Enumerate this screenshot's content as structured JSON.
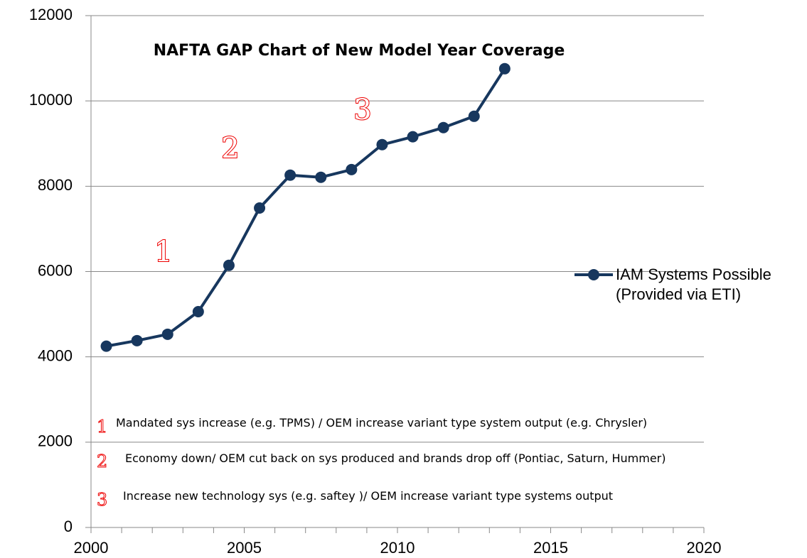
{
  "chart_data": {
    "type": "line",
    "title": "NAFTA GAP Chart of New Model Year  Coverage",
    "x": [
      2000.5,
      2001.5,
      2002.5,
      2003.5,
      2004.5,
      2005.5,
      2006.5,
      2007.5,
      2008.5,
      2009.5,
      2010.5,
      2011.5,
      2012.5,
      2013.5
    ],
    "series": [
      {
        "name": "IAM Systems Possible (Provided via ETI)",
        "color": "#17375e",
        "values": [
          4250,
          4380,
          4530,
          5060,
          6145,
          7490,
          8260,
          8210,
          8390,
          8975,
          9160,
          9375,
          9640,
          10755
        ]
      }
    ],
    "xlim": [
      2000,
      2020
    ],
    "xticks": [
      2000,
      2005,
      2010,
      2015,
      2020
    ],
    "xminorticks": [
      2001,
      2002,
      2003,
      2004,
      2006,
      2007,
      2008,
      2009,
      2011,
      2012,
      2013,
      2014,
      2016,
      2017,
      2018,
      2019
    ],
    "ylim": [
      0,
      12000
    ],
    "yticks": [
      0,
      2000,
      4000,
      6000,
      8000,
      10000,
      12000
    ],
    "grid": true,
    "legend": "right",
    "markers": [
      "1",
      "2",
      "3"
    ],
    "notes": [
      {
        "marker": "1",
        "text": "Mandated sys increase (e.g. TPMS) / OEM increase variant type system output (e.g. Chrysler)"
      },
      {
        "marker": "2",
        "text": "Economy down/ OEM cut back on sys produced and brands drop off (Pontiac, Saturn, Hummer)"
      },
      {
        "marker": "3",
        "text": "Increase new technology sys (e.g. saftey )/ OEM increase variant type systems output"
      }
    ]
  }
}
